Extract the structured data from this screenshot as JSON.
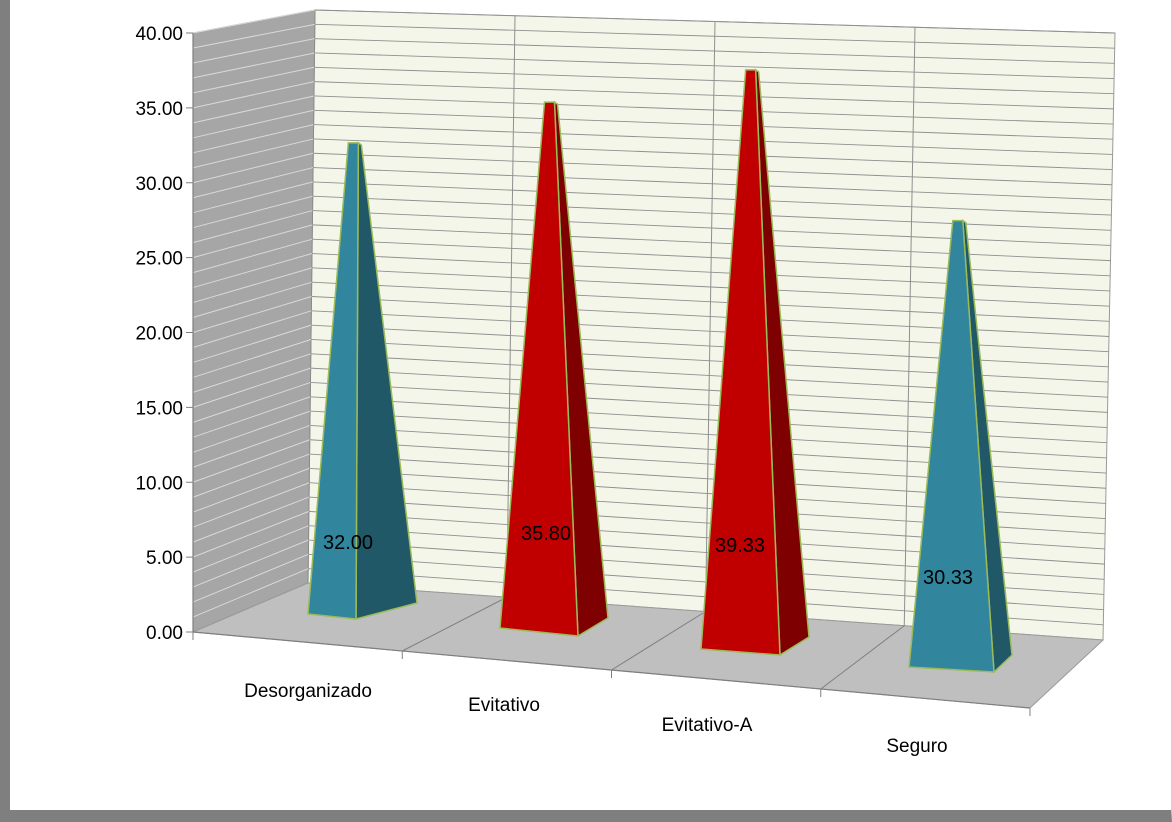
{
  "chart_data": {
    "type": "bar",
    "style": "3d-pyramid",
    "categories": [
      "Desorganizado",
      "Evitativo",
      "Evitativo-A",
      "Seguro"
    ],
    "values": [
      32.0,
      35.8,
      39.33,
      30.33
    ],
    "value_labels": [
      "32.00",
      "35.80",
      "39.33",
      "30.33"
    ],
    "y_ticks": [
      "0.00",
      "5.00",
      "10.00",
      "15.00",
      "20.00",
      "25.00",
      "30.00",
      "35.00",
      "40.00"
    ],
    "ylim": [
      0,
      40
    ],
    "grid": true,
    "legend": "none",
    "bar_colors": [
      "#31859c",
      "#c00000",
      "#c00000",
      "#31859c"
    ],
    "bar_shade_colors": [
      "#215868",
      "#7f0000",
      "#7f0000",
      "#215868"
    ],
    "outline_color": "#9bbb59",
    "wall_color": "#f4f6ea",
    "side_wall_color": "#a6a6a6",
    "floor_color": "#bfbfbf"
  }
}
